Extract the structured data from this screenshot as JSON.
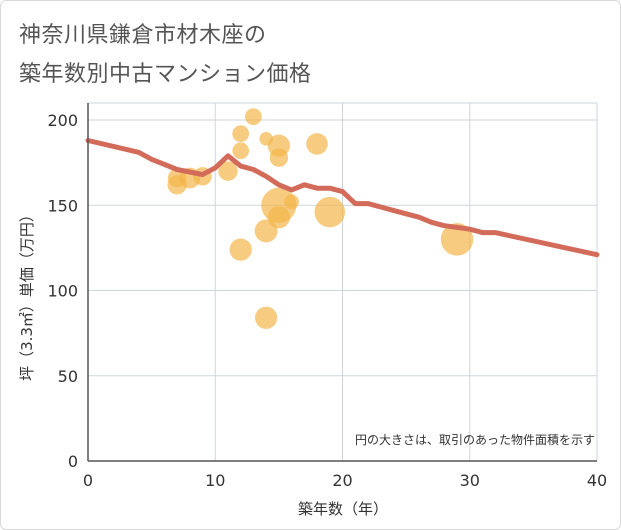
{
  "title": {
    "line1": "神奈川県鎌倉市材木座の",
    "line2": "築年数別中古マンション価格"
  },
  "chart_data": {
    "type": "scatter",
    "xlabel": "築年数（年）",
    "ylabel": "坪（3.3㎡）単価（万円）",
    "xlim": [
      0,
      40
    ],
    "ylim": [
      0,
      210
    ],
    "xticks": [
      0,
      10,
      20,
      30,
      40
    ],
    "yticks": [
      0,
      50,
      100,
      150,
      200
    ],
    "note": "円の大きさは、取引のあった物件面積を示す",
    "colors": {
      "bubble": "#f3b54a",
      "line": "#d36b5a",
      "grid": "#cdd5dc"
    },
    "bubbles": [
      {
        "x": 7,
        "y": 162,
        "size": 1.2
      },
      {
        "x": 7,
        "y": 166,
        "size": 1.1
      },
      {
        "x": 8,
        "y": 166,
        "size": 1.4
      },
      {
        "x": 9,
        "y": 167,
        "size": 1.1
      },
      {
        "x": 11,
        "y": 170,
        "size": 1.2
      },
      {
        "x": 12,
        "y": 192,
        "size": 0.9
      },
      {
        "x": 12,
        "y": 182,
        "size": 0.9
      },
      {
        "x": 12,
        "y": 124,
        "size": 1.6
      },
      {
        "x": 13,
        "y": 202,
        "size": 0.9
      },
      {
        "x": 14,
        "y": 189,
        "size": 0.6
      },
      {
        "x": 14,
        "y": 135,
        "size": 1.7
      },
      {
        "x": 14,
        "y": 84,
        "size": 1.6
      },
      {
        "x": 15,
        "y": 185,
        "size": 1.6
      },
      {
        "x": 15,
        "y": 178,
        "size": 1.1
      },
      {
        "x": 15,
        "y": 150,
        "size": 4.0
      },
      {
        "x": 15,
        "y": 143,
        "size": 1.6
      },
      {
        "x": 16,
        "y": 152,
        "size": 0.7
      },
      {
        "x": 18,
        "y": 186,
        "size": 1.5
      },
      {
        "x": 19,
        "y": 146,
        "size": 3.0
      },
      {
        "x": 29,
        "y": 130,
        "size": 3.4
      }
    ],
    "trend": {
      "x": [
        0,
        4,
        5,
        7,
        9,
        10,
        11,
        12,
        13,
        14,
        15,
        16,
        17,
        18,
        19,
        20,
        21,
        22,
        23,
        24,
        25,
        26,
        27,
        28,
        29,
        30,
        31,
        32,
        40
      ],
      "y": [
        188,
        181,
        177,
        171,
        168,
        172,
        179,
        173,
        171,
        167,
        162,
        159,
        162,
        160,
        160,
        158,
        151,
        151,
        149,
        147,
        145,
        143,
        140,
        138,
        137,
        136,
        134,
        134,
        121
      ]
    }
  }
}
